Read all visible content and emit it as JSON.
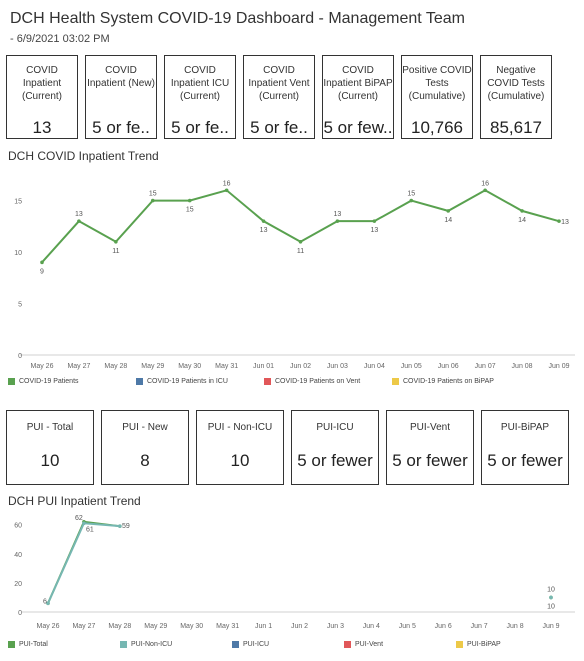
{
  "header": {
    "title": "DCH Health System COVID-19 Dashboard - Management Team",
    "subtitle": "- 6/9/2021 03:02 PM"
  },
  "kpis_top": [
    {
      "label": "COVID Inpatient (Current)",
      "value": "13"
    },
    {
      "label": "COVID Inpatient (New)",
      "value": "5 or fe.."
    },
    {
      "label": "COVID Inpatient ICU (Current)",
      "value": "5 or fe.."
    },
    {
      "label": "COVID Inpatient Vent (Current)",
      "value": "5 or fe.."
    },
    {
      "label": "COVID Inpatient BiPAP (Current)",
      "value": "5 or few.."
    },
    {
      "label": "Positive COVID Tests (Cumulative)",
      "value": "10,766"
    },
    {
      "label": "Negative COVID Tests (Cumulative)",
      "value": "85,617"
    }
  ],
  "kpis_pui": [
    {
      "label": "PUI - Total",
      "value": "10"
    },
    {
      "label": "PUI - New",
      "value": "8"
    },
    {
      "label": "PUI - Non-ICU",
      "value": "10"
    },
    {
      "label": "PUI-ICU",
      "value": "5 or fewer"
    },
    {
      "label": "PUI-Vent",
      "value": "5 or fewer"
    },
    {
      "label": "PUI-BiPAP",
      "value": "5 or fewer"
    }
  ],
  "colors": {
    "green": "#59a14f",
    "teal": "#76b7b2",
    "blue": "#4e79a7",
    "red": "#e15759",
    "yellow": "#edc948",
    "axis": "#d0d0d0",
    "tick": "#666666"
  },
  "chart_data": [
    {
      "type": "line",
      "title": "DCH COVID Inpatient Trend",
      "categories": [
        "May 26",
        "May 27",
        "May 28",
        "May 29",
        "May 30",
        "May 31",
        "Jun 01",
        "Jun 02",
        "Jun 03",
        "Jun 04",
        "Jun 05",
        "Jun 06",
        "Jun 07",
        "Jun 08",
        "Jun 09"
      ],
      "yticks": [
        0,
        5,
        10,
        15
      ],
      "ylim": [
        0,
        17
      ],
      "series": [
        {
          "name": "COVID-19 Patients",
          "color": "#59a14f",
          "values": [
            9,
            13,
            11,
            15,
            15,
            16,
            13,
            11,
            13,
            13,
            15,
            14,
            16,
            14,
            13
          ]
        }
      ],
      "legend": [
        {
          "name": "COVID-19 Patients",
          "color": "#59a14f"
        },
        {
          "name": "COVID-19 Patients in ICU",
          "color": "#4e79a7"
        },
        {
          "name": "COVID-19 Patients on Vent",
          "color": "#e15759"
        },
        {
          "name": "COVID-19 Patients on BiPAP",
          "color": "#edc948"
        }
      ],
      "legend_position": "bottom"
    },
    {
      "type": "line",
      "title": "DCH PUI Inpatient Trend",
      "categories": [
        "May 26",
        "May 27",
        "May 28",
        "May 29",
        "May 30",
        "May 31",
        "Jun 1",
        "Jun 2",
        "Jun 3",
        "Jun 4",
        "Jun 5",
        "Jun 6",
        "Jun 7",
        "Jun 8",
        "Jun 9"
      ],
      "yticks": [
        0,
        20,
        40,
        60
      ],
      "ylim": [
        0,
        66
      ],
      "series": [
        {
          "name": "PUI-Total",
          "color": "#59a14f",
          "values": [
            6,
            62,
            59,
            null,
            null,
            null,
            null,
            null,
            null,
            null,
            null,
            null,
            null,
            null,
            10
          ]
        },
        {
          "name": "PUI-Non-ICU",
          "color": "#76b7b2",
          "values": [
            6,
            61,
            59,
            null,
            null,
            null,
            null,
            null,
            null,
            null,
            null,
            null,
            null,
            null,
            10
          ]
        }
      ],
      "legend": [
        {
          "name": "PUI-Total",
          "color": "#59a14f"
        },
        {
          "name": "PUI-Non-ICU",
          "color": "#76b7b2"
        },
        {
          "name": "PUI-ICU",
          "color": "#4e79a7"
        },
        {
          "name": "PUI-Vent",
          "color": "#e15759"
        },
        {
          "name": "PUI-BiPAP",
          "color": "#edc948"
        }
      ],
      "legend_position": "bottom"
    }
  ]
}
